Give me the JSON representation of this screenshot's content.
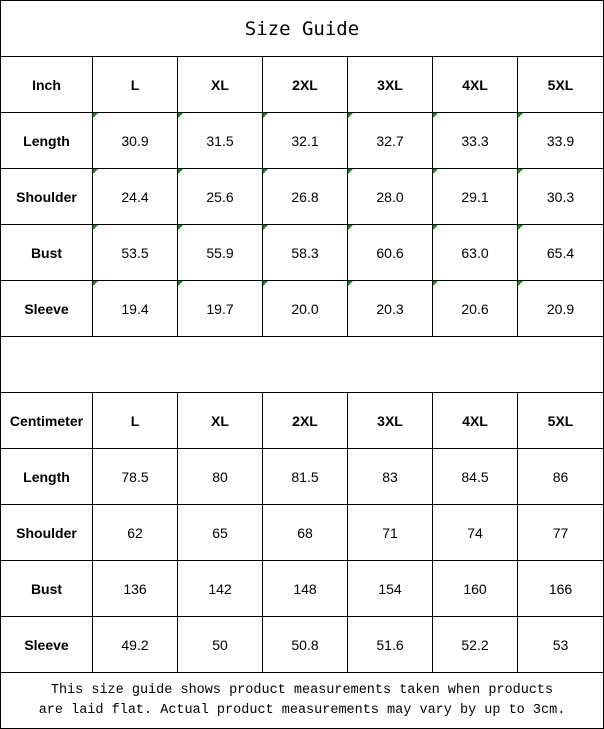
{
  "title": "Size Guide",
  "tables": [
    {
      "unit": "Inch",
      "sizes": [
        "L",
        "XL",
        "2XL",
        "3XL",
        "4XL",
        "5XL"
      ],
      "rows": [
        {
          "label": "Length",
          "values": [
            "30.9",
            "31.5",
            "32.1",
            "32.7",
            "33.3",
            "33.9"
          ]
        },
        {
          "label": "Shoulder",
          "values": [
            "24.4",
            "25.6",
            "26.8",
            "28.0",
            "29.1",
            "30.3"
          ]
        },
        {
          "label": "Bust",
          "values": [
            "53.5",
            "55.9",
            "58.3",
            "60.6",
            "63.0",
            "65.4"
          ]
        },
        {
          "label": "Sleeve",
          "values": [
            "19.4",
            "19.7",
            "20.0",
            "20.3",
            "20.6",
            "20.9"
          ]
        }
      ]
    },
    {
      "unit": "Centimeter",
      "sizes": [
        "L",
        "XL",
        "2XL",
        "3XL",
        "4XL",
        "5XL"
      ],
      "rows": [
        {
          "label": "Length",
          "values": [
            "78.5",
            "80",
            "81.5",
            "83",
            "84.5",
            "86"
          ]
        },
        {
          "label": "Shoulder",
          "values": [
            "62",
            "65",
            "68",
            "71",
            "74",
            "77"
          ]
        },
        {
          "label": "Bust",
          "values": [
            "136",
            "142",
            "148",
            "154",
            "160",
            "166"
          ]
        },
        {
          "label": "Sleeve",
          "values": [
            "49.2",
            "50",
            "50.8",
            "51.6",
            "52.2",
            "53"
          ]
        }
      ]
    }
  ],
  "note_line1": "This size guide shows product measurements taken when products",
  "note_line2": "are laid flat. Actual product measurements may vary by up to 3cm.",
  "colors": {
    "cell_marker": "#138a13",
    "border": "#000000"
  }
}
